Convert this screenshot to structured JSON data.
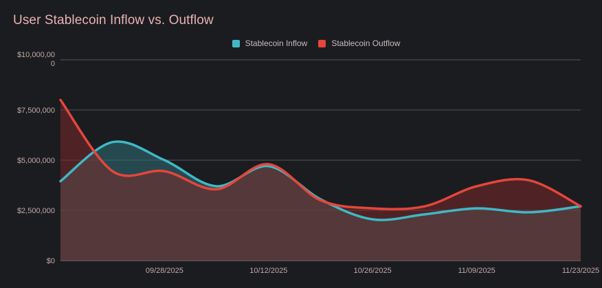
{
  "title": "User Stablecoin Inflow vs. Outflow",
  "colors": {
    "background": "#1b1c20",
    "title": "#e9b3b1",
    "inflow": "#3fb8c6",
    "outflow": "#e5463c",
    "grid": "#55565b"
  },
  "chart_data": {
    "type": "area",
    "title": "User Stablecoin Inflow vs. Outflow",
    "xlabel": "",
    "ylabel": "",
    "x": [
      "09/14/2025",
      "09/21/2025",
      "09/28/2025",
      "10/05/2025",
      "10/12/2025",
      "10/19/2025",
      "10/26/2025",
      "11/02/2025",
      "11/09/2025",
      "11/16/2025",
      "11/23/2025"
    ],
    "x_tick_labels": [
      "09/28/2025",
      "10/12/2025",
      "10/26/2025",
      "11/09/2025",
      "11/23/2025"
    ],
    "y_tick_labels": [
      "$0",
      "$2,500,000",
      "$5,000,000",
      "$7,500,000",
      "$10,000,00\n0"
    ],
    "ylim": [
      0,
      10000000
    ],
    "grid": true,
    "legend_position": "top-center",
    "series": [
      {
        "name": "Stablecoin Inflow",
        "color": "#3fb8c6",
        "values": [
          3950000,
          5900000,
          5000000,
          3700000,
          4700000,
          3050000,
          2050000,
          2300000,
          2600000,
          2400000,
          2700000
        ]
      },
      {
        "name": "Stablecoin Outflow",
        "color": "#e5463c",
        "values": [
          8000000,
          4450000,
          4450000,
          3550000,
          4800000,
          3000000,
          2600000,
          2700000,
          3700000,
          4000000,
          2700000
        ]
      }
    ]
  }
}
